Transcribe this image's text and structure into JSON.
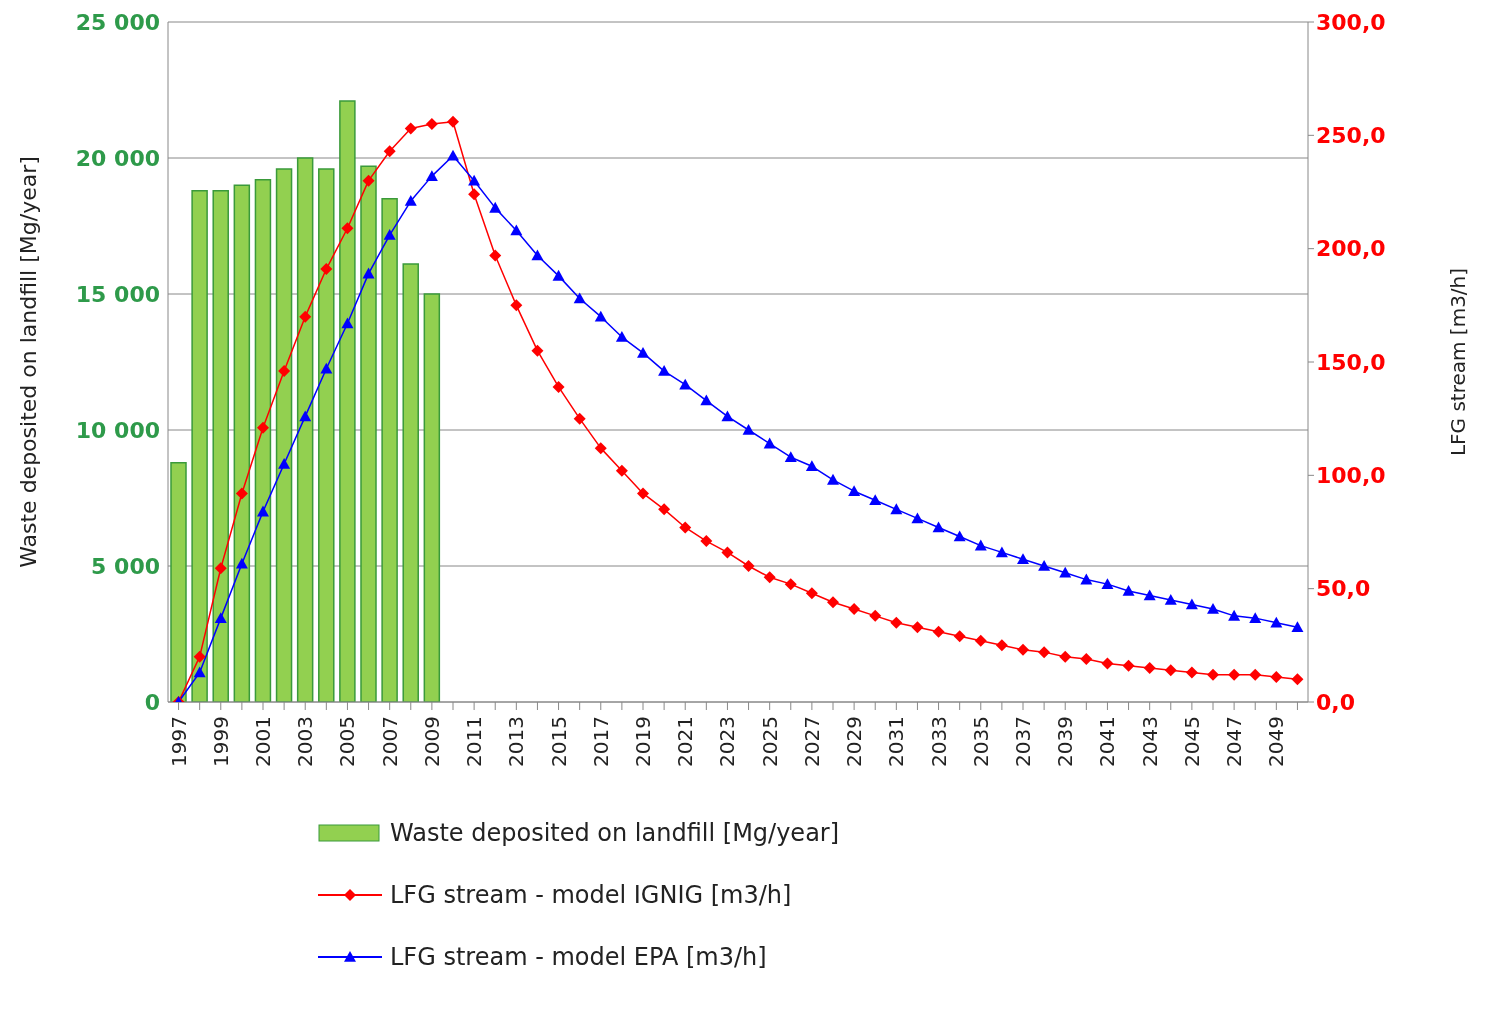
{
  "chart_data": {
    "type": "bar",
    "categories": [
      "1997",
      null,
      "1999",
      null,
      "2001",
      null,
      "2003",
      null,
      "2005",
      null,
      "2007",
      null,
      "2009",
      null,
      "2011",
      null,
      "2013",
      null,
      "2015",
      null,
      "2017",
      null,
      "2019",
      null,
      "2021",
      null,
      "2023",
      null,
      "2025",
      null,
      "2027",
      null,
      "2029",
      null,
      "2031",
      null,
      "2033",
      null,
      "2035",
      null,
      "2037",
      null,
      "2039",
      null,
      "2041",
      null,
      "2043",
      null,
      "2045",
      null,
      "2047",
      null,
      "2049",
      null
    ],
    "series": [
      {
        "name": "Waste deposited on landfill [Mg/year]",
        "color": "#92d050",
        "values": [
          8800,
          18800,
          18800,
          19000,
          19200,
          19600,
          20000,
          19600,
          22100,
          19700,
          18500,
          16100,
          15000,
          null,
          null,
          null,
          null,
          null,
          null,
          null,
          null,
          null,
          null,
          null,
          null,
          null,
          null,
          null,
          null,
          null,
          null,
          null,
          null,
          null,
          null,
          null,
          null,
          null,
          null,
          null,
          null,
          null,
          null,
          null,
          null,
          null,
          null,
          null,
          null,
          null,
          null,
          null,
          null,
          null
        ]
      },
      {
        "name": "LFG stream - model IGNIG [m3/h]",
        "type": "line",
        "axis": "y2",
        "color": "#ff0000",
        "marker": "diamond",
        "values": [
          0,
          20,
          59,
          92,
          121,
          146,
          170,
          191,
          209,
          230,
          243,
          253,
          255,
          256,
          224,
          197,
          175,
          155,
          139,
          125,
          112,
          102,
          92,
          85,
          77,
          71,
          66,
          60,
          55,
          52,
          48,
          44,
          41,
          38,
          35,
          33,
          31,
          29,
          27,
          25,
          23,
          22,
          20,
          19,
          17,
          16,
          15,
          14,
          13,
          12,
          12,
          12,
          11,
          10
        ]
      },
      {
        "name": "LFG stream - model EPA [m3/h]",
        "type": "line",
        "axis": "y2",
        "color": "#0000ff",
        "marker": "triangle",
        "values": [
          0,
          13,
          37,
          61,
          84,
          105,
          126,
          147,
          167,
          189,
          206,
          221,
          232,
          241,
          230,
          218,
          208,
          197,
          188,
          178,
          170,
          161,
          154,
          146,
          140,
          133,
          126,
          120,
          114,
          108,
          104,
          98,
          93,
          89,
          85,
          81,
          77,
          73,
          69,
          66,
          63,
          60,
          57,
          54,
          52,
          49,
          47,
          45,
          43,
          41,
          38,
          37,
          35,
          33
        ]
      }
    ],
    "ylabel": "Waste deposited on landfill [Mg/year]",
    "y2label": "LFG stream [m3/h]",
    "ylim": [
      0,
      25000
    ],
    "yticks": [
      {
        "value": 0,
        "label": "0"
      },
      {
        "value": 5000,
        "label": "5 000"
      },
      {
        "value": 10000,
        "label": "10 000"
      },
      {
        "value": 15000,
        "label": "15 000"
      },
      {
        "value": 20000,
        "label": "20 000"
      },
      {
        "value": 25000,
        "label": "25 000"
      }
    ],
    "y2lim": [
      0,
      300
    ],
    "y2ticks": [
      {
        "value": 0,
        "label": "0,0"
      },
      {
        "value": 50,
        "label": "50,0"
      },
      {
        "value": 100,
        "label": "100,0"
      },
      {
        "value": 150,
        "label": "150,0"
      },
      {
        "value": 200,
        "label": "200,0"
      },
      {
        "value": 250,
        "label": "250,0"
      },
      {
        "value": 300,
        "label": "300,0"
      }
    ],
    "grid": "y",
    "legend": "bottom",
    "line_style": "solid"
  }
}
